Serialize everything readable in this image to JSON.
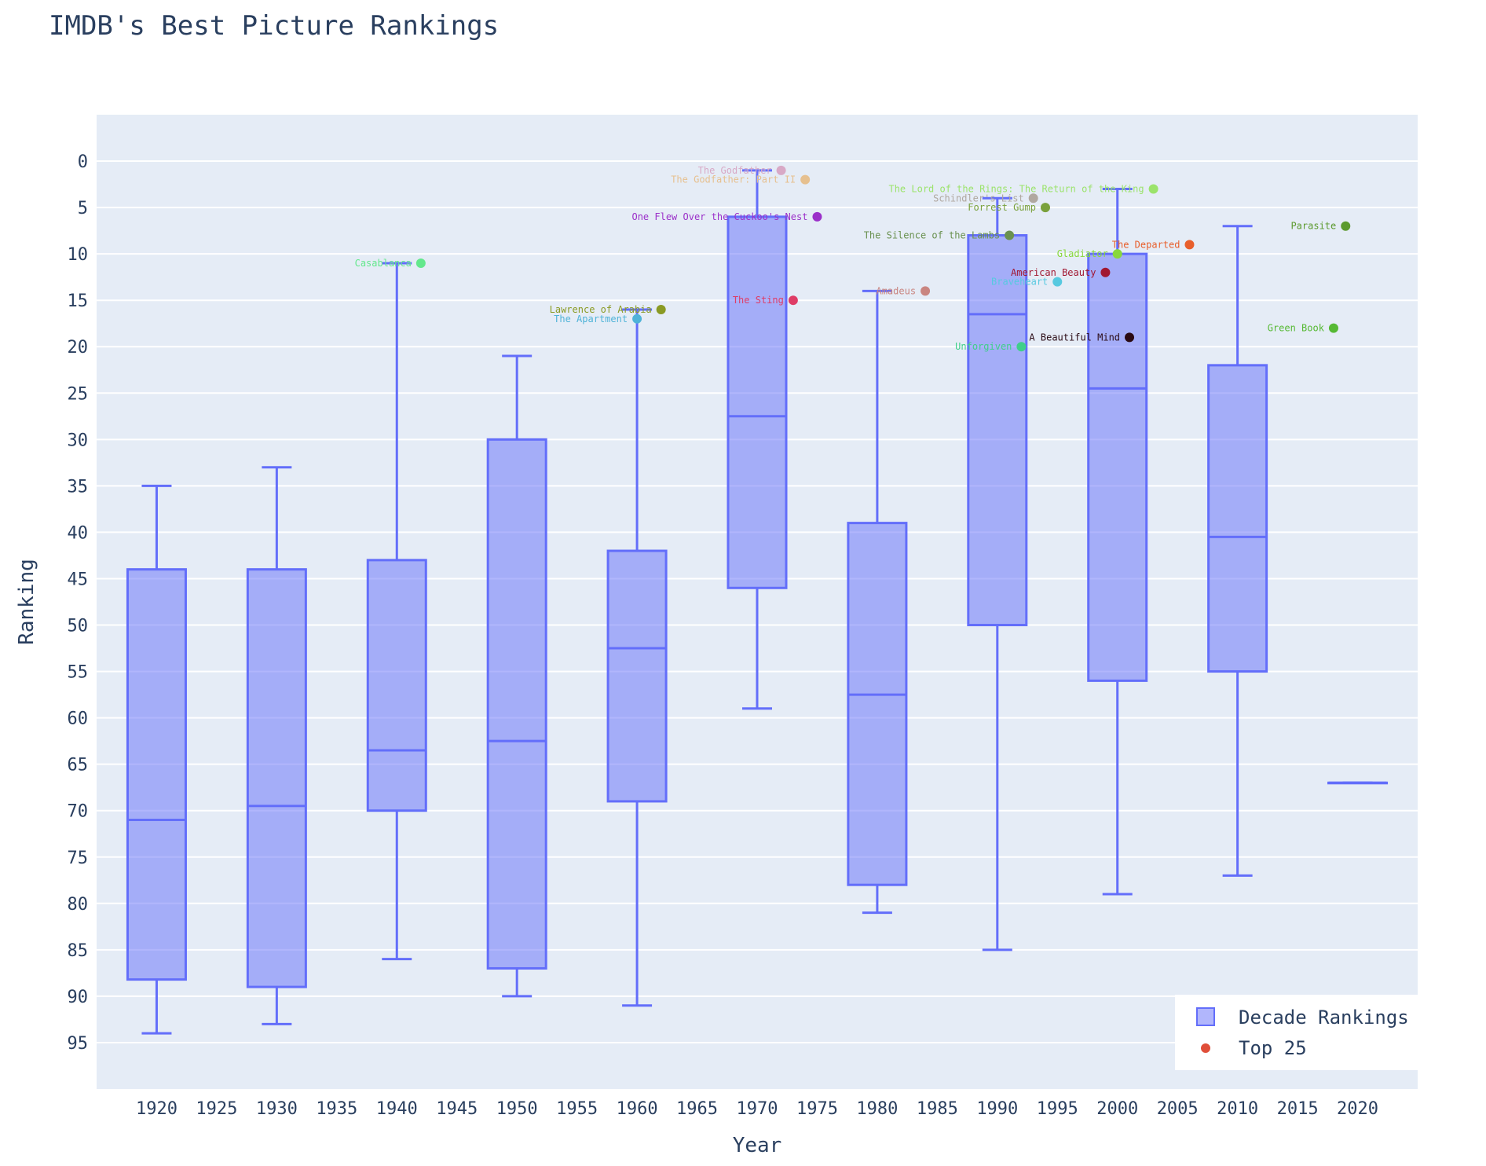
{
  "chart_data": {
    "type": "box",
    "title": "IMDB's Best Picture Rankings",
    "xlabel": "Year",
    "ylabel": "Ranking",
    "xlim": [
      1915,
      2025
    ],
    "ylim": [
      100,
      -5
    ],
    "y_reversed": true,
    "x_ticks": [
      1920,
      1925,
      1930,
      1935,
      1940,
      1945,
      1950,
      1955,
      1960,
      1965,
      1970,
      1975,
      1980,
      1985,
      1990,
      1995,
      2000,
      2005,
      2010,
      2015,
      2020
    ],
    "y_ticks": [
      0,
      5,
      10,
      15,
      20,
      25,
      30,
      35,
      40,
      45,
      50,
      55,
      60,
      65,
      70,
      75,
      80,
      85,
      90,
      95
    ],
    "grid": true,
    "legend": {
      "position": "bottom-right",
      "entries": [
        {
          "name": "Decade Rankings",
          "symbol": "box"
        },
        {
          "name": "Top 25",
          "symbol": "dot"
        }
      ]
    },
    "box_series": {
      "name": "Decade Rankings",
      "color": "#636efa",
      "fill": "rgba(99,110,250,0.5)",
      "boxes": [
        {
          "x": 1920,
          "min": 35,
          "q1": 44,
          "median": 71,
          "q3": 88.2,
          "max": 94
        },
        {
          "x": 1930,
          "min": 33,
          "q1": 44,
          "median": 69.5,
          "q3": 89,
          "max": 93
        },
        {
          "x": 1940,
          "min": 11,
          "q1": 43,
          "median": 63.5,
          "q3": 70,
          "max": 86
        },
        {
          "x": 1950,
          "min": 21,
          "q1": 30,
          "median": 62.5,
          "q3": 87,
          "max": 90
        },
        {
          "x": 1960,
          "min": 16,
          "q1": 42,
          "median": 52.5,
          "q3": 69,
          "max": 91
        },
        {
          "x": 1970,
          "min": 1,
          "q1": 6,
          "median": 27.5,
          "q3": 46,
          "max": 59
        },
        {
          "x": 1980,
          "min": 14,
          "q1": 39,
          "median": 57.5,
          "q3": 78,
          "max": 81
        },
        {
          "x": 1990,
          "min": 4,
          "q1": 8,
          "median": 16.5,
          "q3": 50,
          "max": 85
        },
        {
          "x": 2000,
          "min": 3,
          "q1": 10,
          "median": 24.5,
          "q3": 56,
          "max": 79
        },
        {
          "x": 2010,
          "min": 7,
          "q1": 22,
          "median": 40.5,
          "q3": 55,
          "max": 77
        },
        {
          "x": 2020,
          "min": 67,
          "q1": 67,
          "median": 67,
          "q3": 67,
          "max": 67
        }
      ]
    },
    "top25": [
      {
        "label": "The Godfather",
        "x": 1972,
        "y": 1,
        "color": "#d8a9c6"
      },
      {
        "label": "The Godfather: Part II",
        "x": 1974,
        "y": 2,
        "color": "#e6c08f"
      },
      {
        "label": "The Lord of the Rings: The Return of the King",
        "x": 2003,
        "y": 3,
        "color": "#9be36b"
      },
      {
        "label": "Schindler's List",
        "x": 1993,
        "y": 4,
        "color": "#b0a8a0"
      },
      {
        "label": "Forrest Gump",
        "x": 1994,
        "y": 5,
        "color": "#7aa13c"
      },
      {
        "label": "One Flew Over the Cuckoo's Nest",
        "x": 1975,
        "y": 6,
        "color": "#9b30c9"
      },
      {
        "label": "Parasite",
        "x": 2019,
        "y": 7,
        "color": "#5c9a2e"
      },
      {
        "label": "The Silence of the Lambs",
        "x": 1991,
        "y": 8,
        "color": "#6a9150"
      },
      {
        "label": "The Departed",
        "x": 2006,
        "y": 9,
        "color": "#e85f2c"
      },
      {
        "label": "Gladiator",
        "x": 2000,
        "y": 10,
        "color": "#88d83c"
      },
      {
        "label": "Casablanca",
        "x": 1942,
        "y": 11,
        "color": "#63e88c"
      },
      {
        "label": "American Beauty",
        "x": 1999,
        "y": 12,
        "color": "#a11731"
      },
      {
        "label": "Braveheart",
        "x": 1995,
        "y": 13,
        "color": "#57c9e0"
      },
      {
        "label": "Amadeus",
        "x": 1984,
        "y": 14,
        "color": "#c98580"
      },
      {
        "label": "The Sting",
        "x": 1973,
        "y": 15,
        "color": "#df3c66"
      },
      {
        "label": "Lawrence of Arabia",
        "x": 1962,
        "y": 16,
        "color": "#8a9a24"
      },
      {
        "label": "The Apartment",
        "x": 1960,
        "y": 17,
        "color": "#4fb3d8"
      },
      {
        "label": "Green Book",
        "x": 2018,
        "y": 18,
        "color": "#56b934"
      },
      {
        "label": "A Beautiful Mind",
        "x": 2001,
        "y": 19,
        "color": "#2a0a14"
      },
      {
        "label": "Unforgiven",
        "x": 1992,
        "y": 20,
        "color": "#3fcf8a"
      }
    ]
  }
}
